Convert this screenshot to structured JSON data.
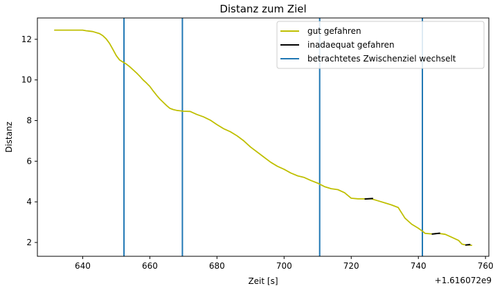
{
  "chart_data": {
    "type": "line",
    "title": "Distanz zum Ziel",
    "xlabel": "Zeit [s]",
    "ylabel": "Distanz",
    "x_offset_label": "+1.616072e9",
    "xlim": [
      626.5,
      761
    ],
    "ylim": [
      1.32,
      13.05
    ],
    "xticks": [
      640,
      660,
      680,
      700,
      720,
      740,
      760
    ],
    "yticks": [
      2,
      4,
      6,
      8,
      10,
      12
    ],
    "grid": false,
    "legend_position": "top-right",
    "series": [
      {
        "name": "gut gefahren",
        "color": "#bfbf00",
        "x": [
          631.5,
          636,
          640,
          641,
          643,
          645,
          646,
          647,
          648,
          649,
          650,
          651,
          652,
          653,
          654,
          655,
          656,
          657,
          658,
          659,
          660,
          661,
          662,
          663,
          664,
          665,
          666,
          667,
          668,
          669,
          670,
          672,
          674,
          676,
          678,
          680,
          682,
          684,
          686,
          688,
          690,
          692,
          694,
          696,
          698,
          700,
          702,
          704,
          706,
          708,
          710,
          712,
          714,
          716,
          718,
          720,
          722,
          724,
          726,
          728,
          730,
          732,
          734,
          736,
          738,
          740,
          741.5,
          742,
          744,
          746,
          748,
          750,
          752,
          753,
          754,
          756
        ],
        "y": [
          12.45,
          12.45,
          12.45,
          12.42,
          12.38,
          12.28,
          12.18,
          12.02,
          11.8,
          11.5,
          11.2,
          10.98,
          10.88,
          10.78,
          10.65,
          10.5,
          10.35,
          10.18,
          10.0,
          9.85,
          9.68,
          9.46,
          9.25,
          9.06,
          8.9,
          8.74,
          8.6,
          8.54,
          8.5,
          8.48,
          8.46,
          8.45,
          8.3,
          8.18,
          8.02,
          7.8,
          7.6,
          7.45,
          7.25,
          7.0,
          6.7,
          6.45,
          6.2,
          5.95,
          5.75,
          5.6,
          5.42,
          5.28,
          5.2,
          5.05,
          4.92,
          4.75,
          4.65,
          4.6,
          4.45,
          4.18,
          4.15,
          4.15,
          4.15,
          4.05,
          3.95,
          3.85,
          3.72,
          3.2,
          2.9,
          2.7,
          2.52,
          2.45,
          2.42,
          2.45,
          2.4,
          2.25,
          2.1,
          1.92,
          1.88,
          1.86
        ]
      },
      {
        "name": "inadaequat gefahren",
        "color": "#000000",
        "segments": [
          {
            "x": [
              724,
              726.5
            ],
            "y": [
              4.14,
              4.17
            ]
          },
          {
            "x": [
              744,
              746.5
            ],
            "y": [
              2.41,
              2.46
            ]
          },
          {
            "x": [
              754,
              755.5
            ],
            "y": [
              1.87,
              1.9
            ]
          }
        ]
      },
      {
        "name": "betrachtetes Zwischenziel wechselt",
        "color": "#1f77b4",
        "vlines": [
          652.3,
          669.7,
          710.6,
          741.2
        ]
      }
    ]
  }
}
